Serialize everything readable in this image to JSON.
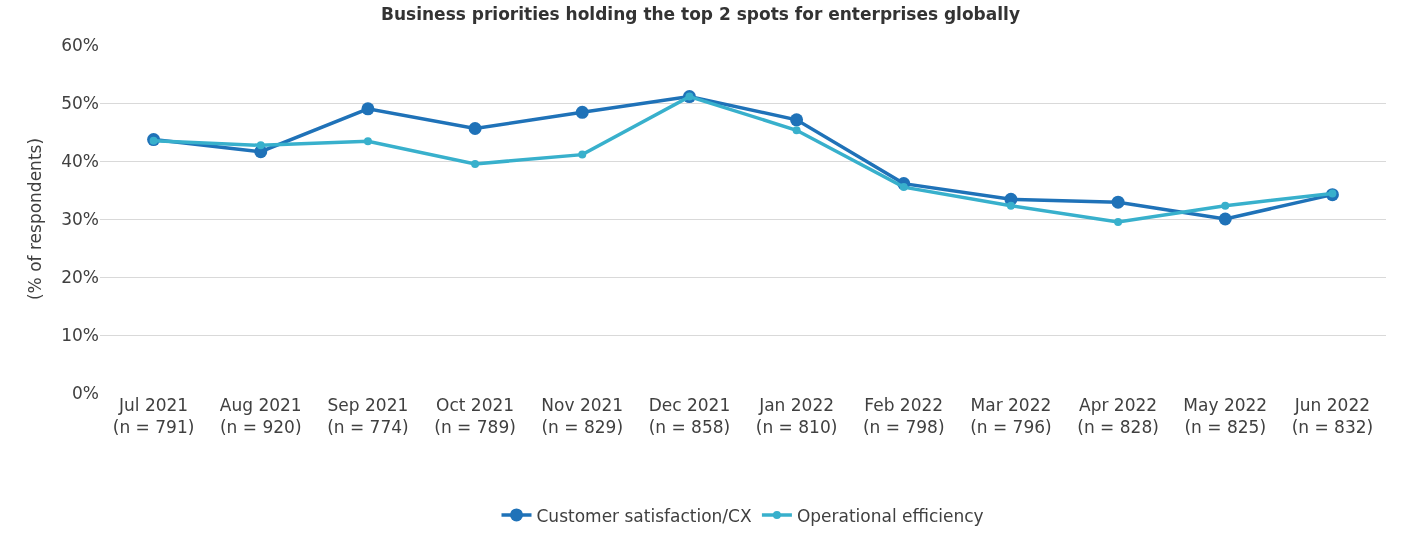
{
  "chart_data": {
    "type": "line",
    "title": "Business priorities holding the top 2 spots for enterprises globally",
    "ylabel": "(% of respondents)",
    "categories": [
      "Jul 2021\n(n = 791)",
      "Aug 2021\n(n = 920)",
      "Sep 2021\n(n = 774)",
      "Oct 2021\n(n = 789)",
      "Nov 2021\n(n = 829)",
      "Dec 2021\n(n = 858)",
      "Jan 2022\n(n = 810)",
      "Feb 2022\n(n = 798)",
      "Mar 2022\n(n = 796)",
      "Apr 2022\n(n = 828)",
      "May 2022\n(n = 825)",
      "Jun 2022\n(n = 832)"
    ],
    "series": [
      {
        "name": "Customer satisfaction/CX",
        "color": "#1f72b8",
        "values": [
          43.7,
          41.6,
          49.0,
          45.6,
          48.4,
          51.1,
          47.1,
          36.1,
          33.4,
          32.9,
          30.0,
          34.2
        ]
      },
      {
        "name": "Operational efficiency",
        "color": "#38b0cc",
        "values": [
          43.5,
          42.7,
          43.4,
          39.5,
          41.1,
          51.1,
          45.3,
          35.5,
          32.3,
          29.5,
          32.3,
          34.4
        ]
      }
    ],
    "ylim": [
      0,
      60
    ],
    "yticks": [
      {
        "value": 0,
        "label": "0%"
      },
      {
        "value": 10,
        "label": "10%"
      },
      {
        "value": 20,
        "label": "20%"
      },
      {
        "value": 30,
        "label": "30%"
      },
      {
        "value": 40,
        "label": "40%"
      },
      {
        "value": 50,
        "label": "50%"
      },
      {
        "value": 60,
        "label": "60%"
      }
    ],
    "grid": "y",
    "legend": "bottom",
    "marker": "circle",
    "line_style": "solid"
  }
}
